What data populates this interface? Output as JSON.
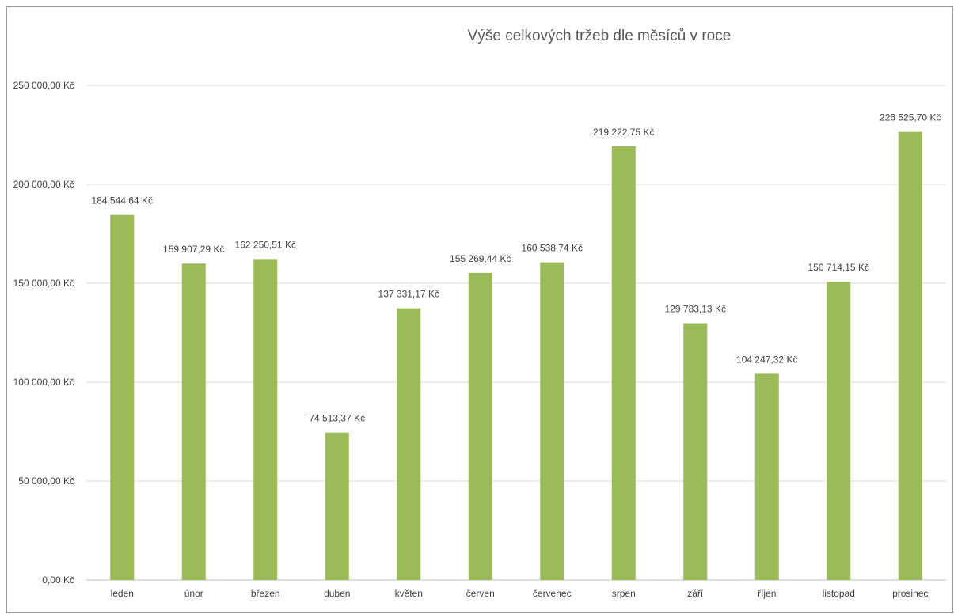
{
  "chart_data": {
    "type": "bar",
    "title": "Výše celkových tržeb dle měsíců v roce",
    "xlabel": "",
    "ylabel": "",
    "categories": [
      "leden",
      "únor",
      "březen",
      "duben",
      "květen",
      "červen",
      "červenec",
      "srpen",
      "září",
      "říjen",
      "listopad",
      "prosinec"
    ],
    "values": [
      184544.64,
      159907.29,
      162250.51,
      74513.37,
      137331.17,
      155269.44,
      160538.74,
      219222.75,
      129783.13,
      104247.32,
      150714.15,
      226525.7
    ],
    "data_labels": [
      "184 544,64 Kč",
      "159 907,29 Kč",
      "162 250,51 Kč",
      "74 513,37 Kč",
      "137 331,17 Kč",
      "155 269,44 Kč",
      "160 538,74 Kč",
      "219 222,75 Kč",
      "129 783,13 Kč",
      "104 247,32 Kč",
      "150 714,15 Kč",
      "226 525,70 Kč"
    ],
    "ylim": [
      0,
      250000
    ],
    "y_ticks": [
      0,
      50000,
      100000,
      150000,
      200000,
      250000
    ],
    "y_tick_labels": [
      "0,00 Kč",
      "50 000,00 Kč",
      "100 000,00 Kč",
      "150 000,00 Kč",
      "200 000,00 Kč",
      "250 000,00 Kč"
    ],
    "grid": true,
    "legend": "none",
    "bar_color": "#9bbb59"
  }
}
